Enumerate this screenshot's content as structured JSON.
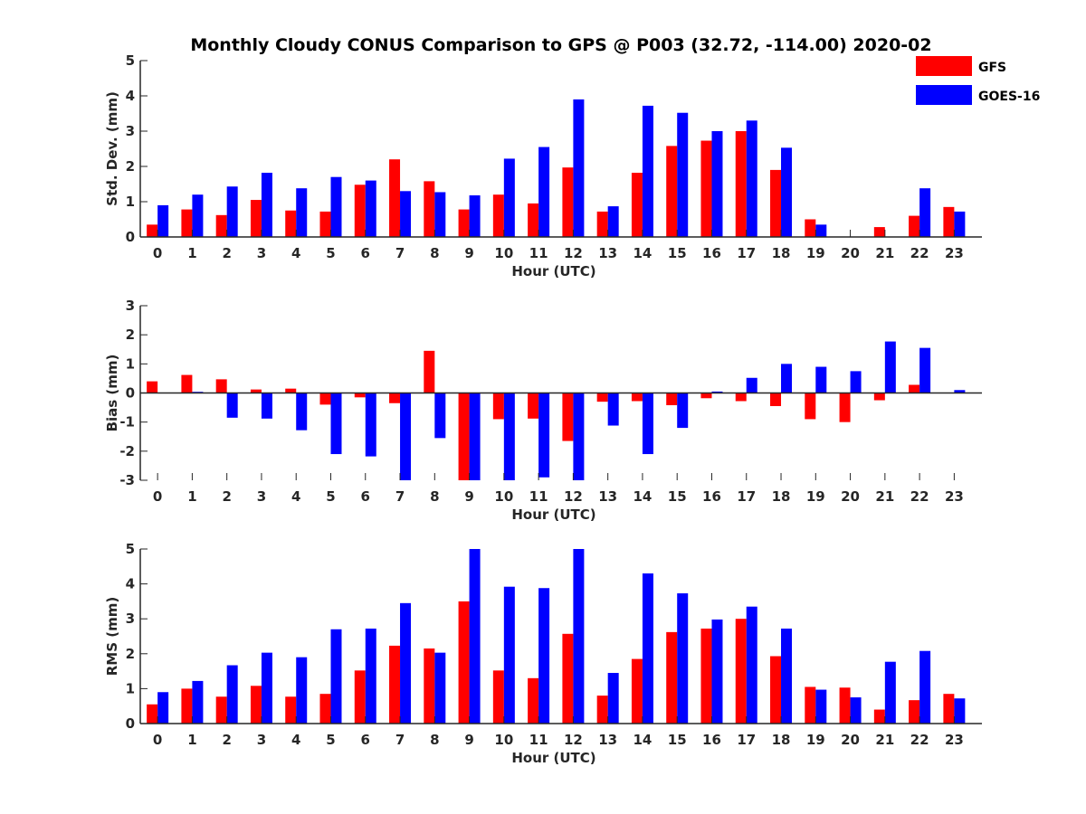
{
  "title": "Monthly Cloudy CONUS Comparison to GPS @ P003 (32.72, -114.00) 2020-02",
  "legend": [
    {
      "name": "GFS",
      "color": "#ff0000"
    },
    {
      "name": "GOES-16",
      "color": "#0000ff"
    }
  ],
  "chart_data": [
    {
      "type": "bar",
      "xlabel": "Hour (UTC)",
      "ylabel": "Std. Dev. (mm)",
      "ylim": [
        0,
        5
      ],
      "yticks": [
        0,
        1,
        2,
        3,
        4,
        5
      ],
      "categories": [
        "0",
        "1",
        "2",
        "3",
        "4",
        "5",
        "6",
        "7",
        "8",
        "9",
        "10",
        "11",
        "12",
        "13",
        "14",
        "15",
        "16",
        "17",
        "18",
        "19",
        "20",
        "21",
        "22",
        "23"
      ],
      "series": [
        {
          "name": "GFS",
          "color": "#ff0000",
          "values": [
            0.35,
            0.78,
            0.62,
            1.05,
            0.75,
            0.72,
            1.48,
            2.2,
            1.58,
            0.78,
            1.2,
            0.95,
            1.97,
            0.72,
            1.82,
            2.58,
            2.73,
            3.0,
            1.9,
            0.5,
            0,
            0.28,
            0.6,
            0.85
          ]
        },
        {
          "name": "GOES-16",
          "color": "#0000ff",
          "values": [
            0.9,
            1.2,
            1.43,
            1.82,
            1.38,
            1.7,
            1.6,
            1.3,
            1.27,
            1.18,
            2.22,
            2.55,
            3.9,
            0.87,
            3.72,
            3.52,
            3.0,
            3.3,
            2.53,
            0.35,
            0,
            0,
            1.38,
            0.72
          ]
        }
      ]
    },
    {
      "type": "bar",
      "xlabel": "Hour (UTC)",
      "ylabel": "Bias (mm)",
      "ylim": [
        -3,
        3
      ],
      "yticks": [
        -3,
        -2,
        -1,
        0,
        1,
        2,
        3
      ],
      "categories": [
        "0",
        "1",
        "2",
        "3",
        "4",
        "5",
        "6",
        "7",
        "8",
        "9",
        "10",
        "11",
        "12",
        "13",
        "14",
        "15",
        "16",
        "17",
        "18",
        "19",
        "20",
        "21",
        "22",
        "23"
      ],
      "series": [
        {
          "name": "GFS",
          "color": "#ff0000",
          "values": [
            0.4,
            0.62,
            0.47,
            0.12,
            0.15,
            -0.4,
            -0.15,
            -0.35,
            1.45,
            -3.0,
            -0.9,
            -0.88,
            -1.65,
            -0.3,
            -0.28,
            -0.42,
            -0.18,
            -0.28,
            -0.45,
            -0.9,
            -1.0,
            -0.25,
            0.28,
            0
          ]
        },
        {
          "name": "GOES-16",
          "color": "#0000ff",
          "values": [
            0,
            0.04,
            -0.85,
            -0.88,
            -1.28,
            -2.1,
            -2.18,
            -3.0,
            -1.55,
            -3.0,
            -3.0,
            -2.9,
            -3.0,
            -1.12,
            -2.1,
            -1.2,
            0.05,
            0.52,
            1.0,
            0.9,
            0.75,
            1.77,
            1.55,
            0.1
          ]
        }
      ]
    },
    {
      "type": "bar",
      "xlabel": "Hour (UTC)",
      "ylabel": "RMS (mm)",
      "ylim": [
        0,
        5
      ],
      "yticks": [
        0,
        1,
        2,
        3,
        4,
        5
      ],
      "categories": [
        "0",
        "1",
        "2",
        "3",
        "4",
        "5",
        "6",
        "7",
        "8",
        "9",
        "10",
        "11",
        "12",
        "13",
        "14",
        "15",
        "16",
        "17",
        "18",
        "19",
        "20",
        "21",
        "22",
        "23"
      ],
      "series": [
        {
          "name": "GFS",
          "color": "#ff0000",
          "values": [
            0.55,
            1.0,
            0.77,
            1.08,
            0.77,
            0.85,
            1.52,
            2.23,
            2.15,
            3.5,
            1.52,
            1.3,
            2.57,
            0.8,
            1.85,
            2.62,
            2.72,
            3.0,
            1.93,
            1.05,
            1.03,
            0.4,
            0.67,
            0.85
          ]
        },
        {
          "name": "GOES-16",
          "color": "#0000ff",
          "values": [
            0.9,
            1.22,
            1.67,
            2.03,
            1.9,
            2.7,
            2.72,
            3.45,
            2.03,
            5.0,
            3.92,
            3.88,
            5.0,
            1.45,
            4.3,
            3.73,
            2.98,
            3.35,
            2.72,
            0.97,
            0.75,
            1.77,
            2.08,
            0.72
          ]
        }
      ]
    }
  ]
}
